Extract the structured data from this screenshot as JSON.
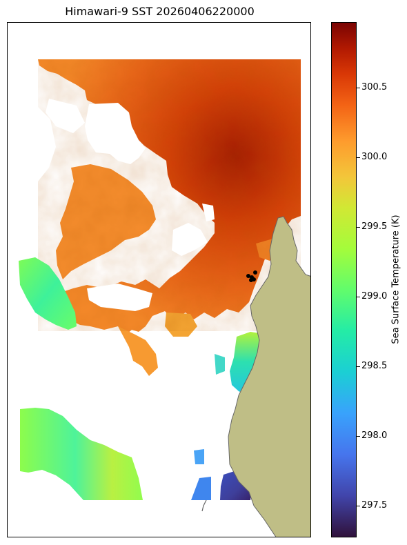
{
  "title": "Himawari-9 SST 20260406220000",
  "colorbar": {
    "label": "Sea Surface Temperature (K)",
    "range": [
      297.27,
      300.97
    ],
    "ticks": [
      "297.5",
      "298.0",
      "298.5",
      "299.0",
      "299.5",
      "300.0",
      "300.5"
    ],
    "colormap": "turbo"
  },
  "colors": {
    "land": "#bfbe86",
    "coastline": "#666666",
    "no_data": "#ffffff",
    "points": "#000000"
  },
  "map": {
    "variable": "SST",
    "units": "K",
    "observation_points": 5
  }
}
